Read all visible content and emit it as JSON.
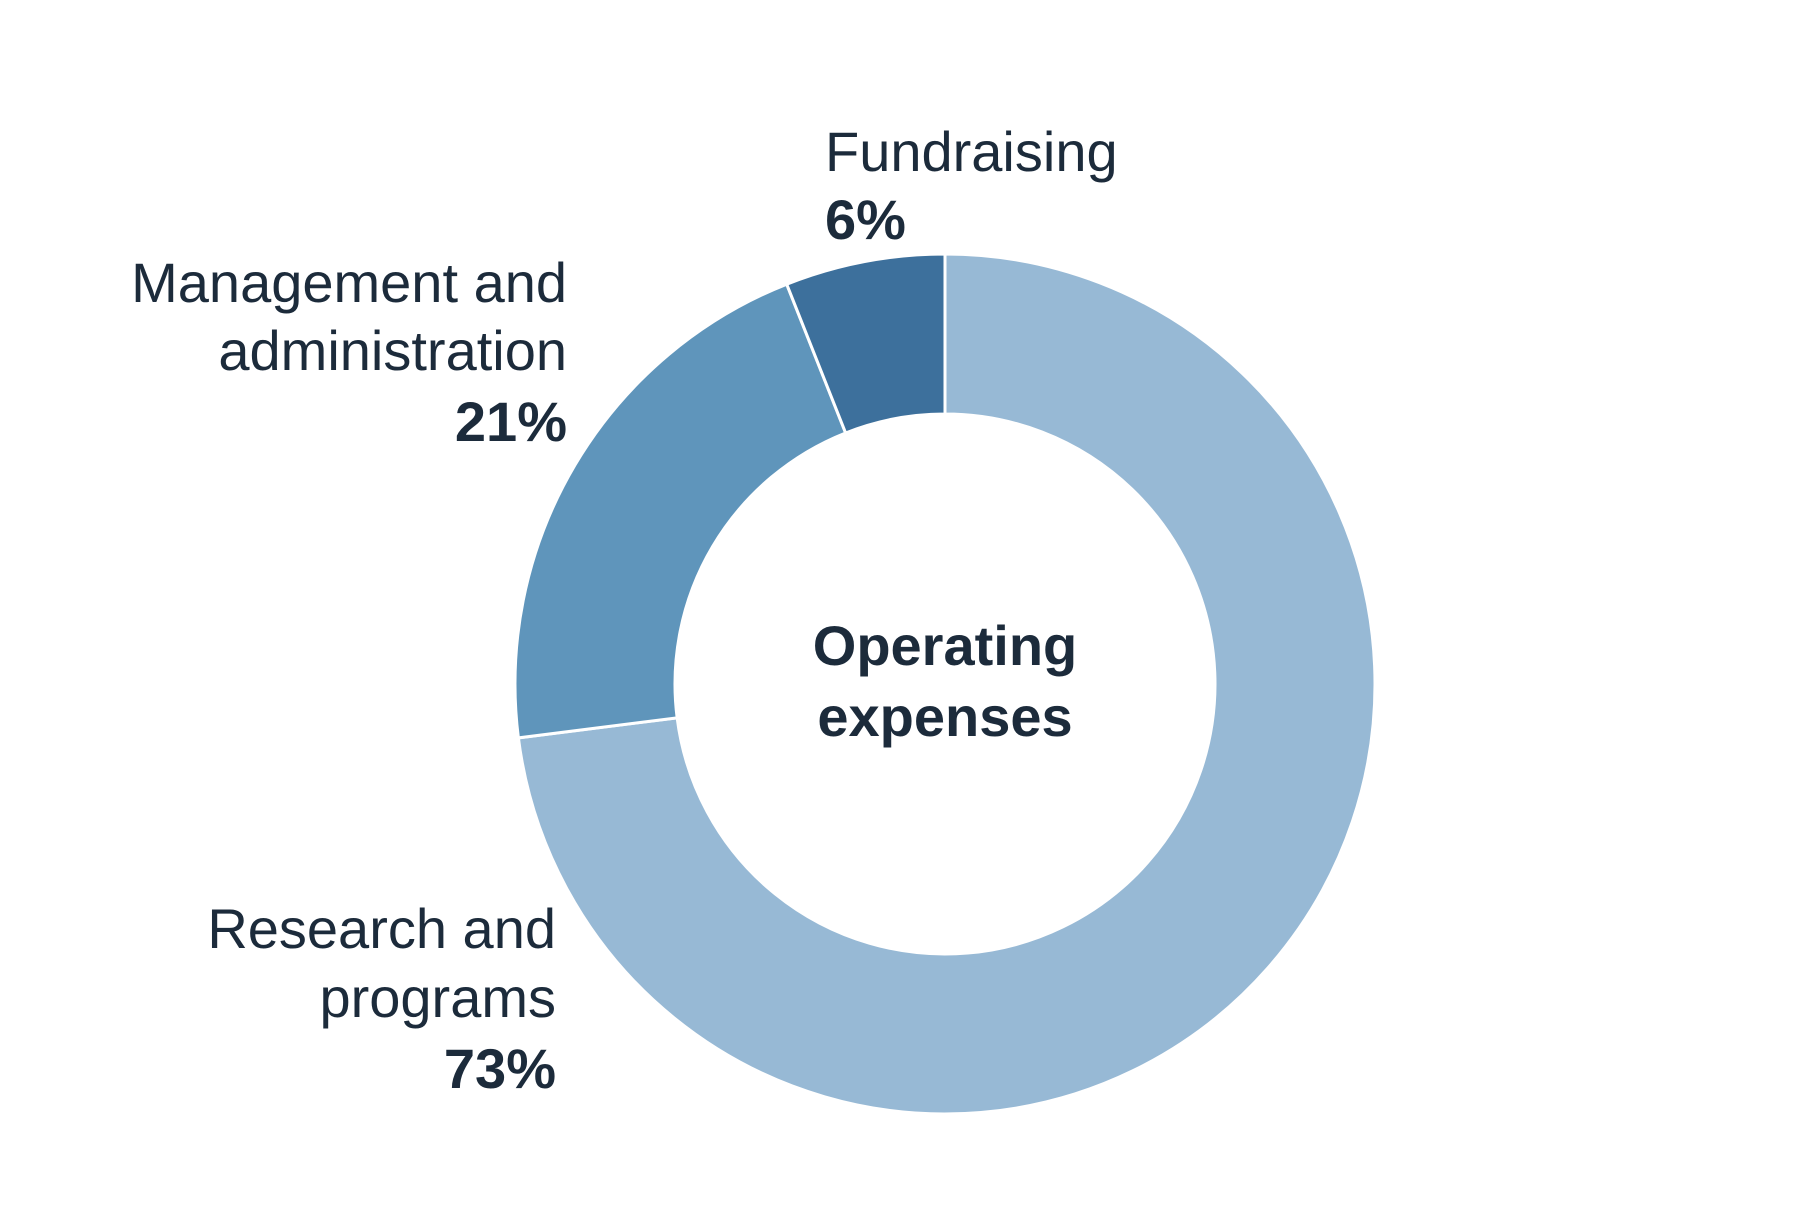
{
  "chart_data": {
    "type": "pie",
    "title": "",
    "center_label": [
      "Operating",
      "expenses"
    ],
    "slices": [
      {
        "label": [
          "Research and",
          "programs"
        ],
        "value": 73,
        "value_label": "73%",
        "color": "#97b9d5"
      },
      {
        "label": [
          "Management and",
          "administration"
        ],
        "value": 21,
        "value_label": "21%",
        "color": "#5f95bb"
      },
      {
        "label": [
          "Fundraising"
        ],
        "value": 6,
        "value_label": "6%",
        "color": "#3d709c"
      }
    ]
  }
}
